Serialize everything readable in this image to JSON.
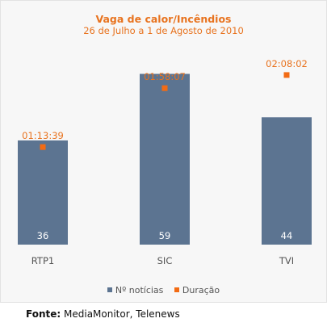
{
  "title": "Vaga de calor/Incêndios",
  "subtitle": "26 de Julho a 1 de Agosto de 2010",
  "chart_data": {
    "type": "bar",
    "categories": [
      "RTP1",
      "SIC",
      "TVI"
    ],
    "series": [
      {
        "name": "Nº notícias",
        "values": [
          36,
          59,
          44
        ],
        "color": "#5c7491",
        "kind": "bar"
      },
      {
        "name": "Duração",
        "values": [
          "01:13:39",
          "01:58:07",
          "02:08:02"
        ],
        "color": "#f26b14",
        "kind": "marker"
      }
    ],
    "ylim_bars": [
      0,
      65
    ],
    "ylim_duration_seconds": [
      0,
      8520
    ]
  },
  "legend": {
    "bars_label": "Nº notícias",
    "markers_label": "Duração",
    "bars_color": "#5c7491",
    "markers_color": "#f26b14"
  },
  "source": {
    "label": "Fonte:",
    "text": "MediaMonitor, Telenews"
  }
}
